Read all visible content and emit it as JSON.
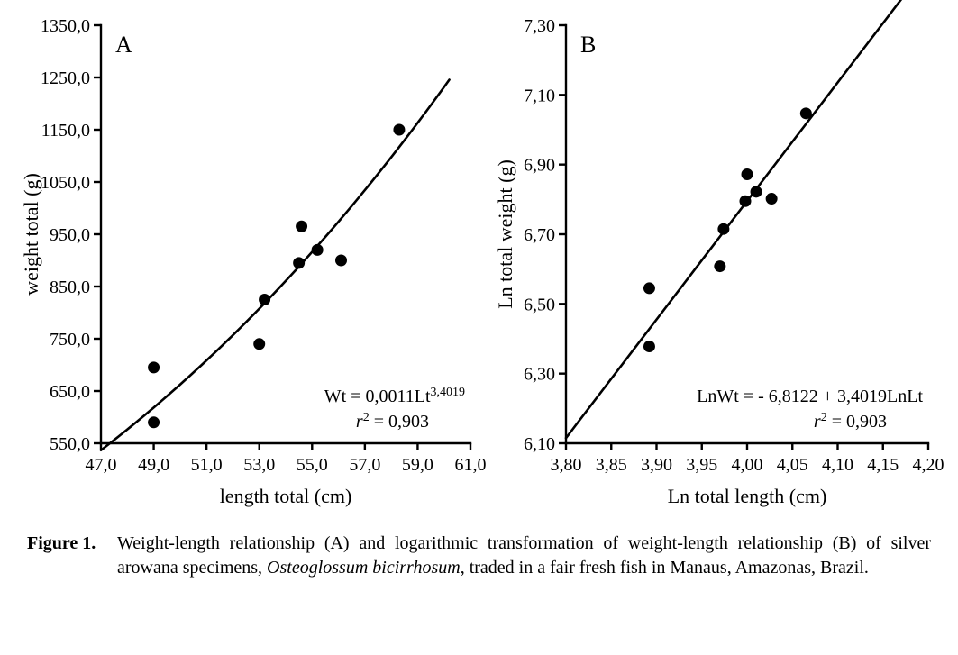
{
  "caption": {
    "label": "Figure 1.",
    "text_before_italic": "Weight-length relationship (A) and logarithmic transformation of weight-length relationship (B) of silver arowana specimens, ",
    "italic": "Osteoglossum bicirrhosum",
    "text_after_italic": ", traded in a fair fresh fish in Manaus, Amazonas, Brazil."
  },
  "chartA": {
    "type": "scatter+curve",
    "panel_label": "A",
    "xlabel": "length total (cm)",
    "ylabel": "weight total (g)",
    "xlim": [
      47.0,
      61.0
    ],
    "ylim": [
      550.0,
      1350.0
    ],
    "xticks": [
      47.0,
      49.0,
      51.0,
      53.0,
      55.0,
      57.0,
      59.0,
      61.0
    ],
    "yticks": [
      550.0,
      650.0,
      750.0,
      850.0,
      950.0,
      1050.0,
      1150.0,
      1250.0,
      1350.0
    ],
    "xtick_labels": [
      "47,0",
      "49,0",
      "51,0",
      "53,0",
      "55,0",
      "57,0",
      "59,0",
      "61,0"
    ],
    "ytick_labels": [
      "550,0",
      "650,0",
      "750,0",
      "850,0",
      "950,0",
      "1050,0",
      "1150,0",
      "1250,0",
      "1350,0"
    ],
    "points": [
      {
        "x": 49.0,
        "y": 695.0
      },
      {
        "x": 49.0,
        "y": 590.0
      },
      {
        "x": 53.0,
        "y": 740.0
      },
      {
        "x": 53.2,
        "y": 825.0
      },
      {
        "x": 54.5,
        "y": 895.0
      },
      {
        "x": 54.6,
        "y": 965.0
      },
      {
        "x": 55.2,
        "y": 920.0
      },
      {
        "x": 56.1,
        "y": 900.0
      },
      {
        "x": 58.3,
        "y": 1150.0
      }
    ],
    "curve": {
      "a": 0.0011,
      "b": 3.4019,
      "xstart": 47.0,
      "xend": 60.2
    },
    "equation_main": "Wt = 0,0011Lt",
    "equation_exp": "3,4019",
    "r2_label": "r",
    "r2_sup": "2",
    "r2_rest": " = 0,903",
    "marker_color": "#000000",
    "marker_radius": 6.5,
    "line_color": "#000000",
    "line_width": 2.6,
    "axis_color": "#000000",
    "axis_width": 2.4,
    "tick_len": 8,
    "background_color": "#ffffff",
    "label_fontsize": 22,
    "tick_fontsize": 20,
    "eqn_fontsize": 20,
    "panel_fontsize": 26
  },
  "chartB": {
    "type": "scatter+line",
    "panel_label": "B",
    "xlabel": "Ln total length (cm)",
    "ylabel": "Ln total weight (g)",
    "xlim": [
      3.8,
      4.2
    ],
    "ylim": [
      6.1,
      7.3
    ],
    "xticks": [
      3.8,
      3.85,
      3.9,
      3.95,
      4.0,
      4.05,
      4.1,
      4.15,
      4.2
    ],
    "yticks": [
      6.1,
      6.3,
      6.5,
      6.7,
      6.9,
      7.1,
      7.3
    ],
    "xtick_labels": [
      "3,80",
      "3,85",
      "3,90",
      "3,95",
      "4,00",
      "4,05",
      "4,10",
      "4,15",
      "4,20"
    ],
    "ytick_labels": [
      "6,10",
      "6,30",
      "6,50",
      "6,70",
      "6,90",
      "7,10",
      "7,30"
    ],
    "points": [
      {
        "x": 3.892,
        "y": 6.545
      },
      {
        "x": 3.892,
        "y": 6.378
      },
      {
        "x": 3.97,
        "y": 6.608
      },
      {
        "x": 3.974,
        "y": 6.715
      },
      {
        "x": 3.998,
        "y": 6.795
      },
      {
        "x": 4.0,
        "y": 6.872
      },
      {
        "x": 4.01,
        "y": 6.822
      },
      {
        "x": 4.027,
        "y": 6.802
      },
      {
        "x": 4.065,
        "y": 7.047
      }
    ],
    "line": {
      "intercept": -6.8122,
      "slope": 3.4019,
      "xstart": 3.8,
      "xend": 4.17
    },
    "equation_main": "LnWt = - 6,8122 + 3,4019LnLt",
    "r2_label": "r",
    "r2_sup": "2",
    "r2_rest": " = 0,903",
    "marker_color": "#000000",
    "marker_radius": 6.5,
    "line_color": "#000000",
    "line_width": 2.6,
    "axis_color": "#000000",
    "axis_width": 2.4,
    "tick_len": 8,
    "background_color": "#ffffff",
    "label_fontsize": 22,
    "tick_fontsize": 20,
    "eqn_fontsize": 20,
    "panel_fontsize": 26
  }
}
